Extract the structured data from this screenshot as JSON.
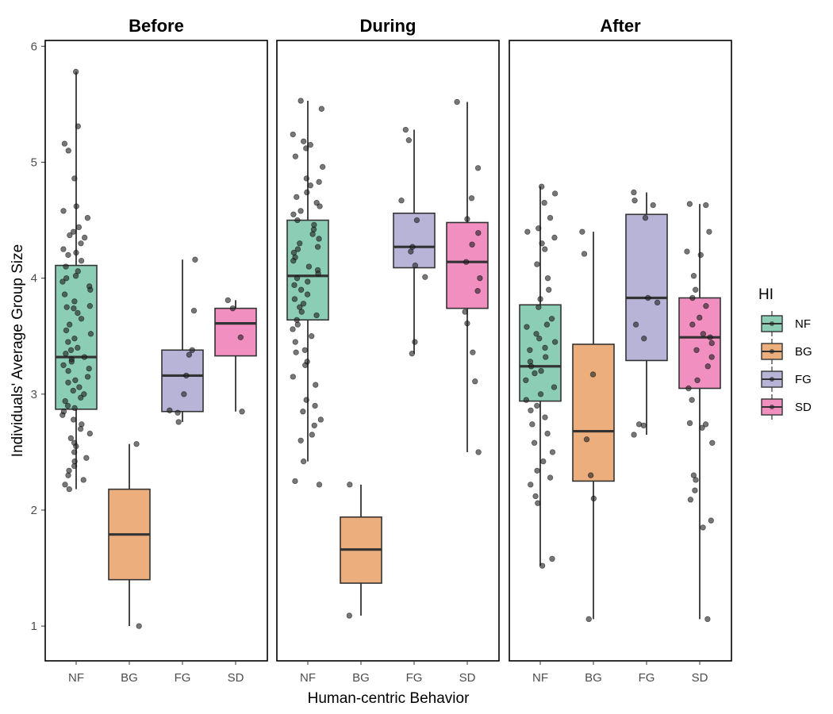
{
  "chart_data": {
    "type": "box",
    "xlabel": "Human-centric Behavior",
    "ylabel": "Individuals' Average Group Size",
    "ylim": [
      0.7,
      6.05
    ],
    "yticks": [
      1,
      2,
      3,
      4,
      5,
      6
    ],
    "categories": [
      "NF",
      "BG",
      "FG",
      "SD"
    ],
    "colors": {
      "NF": "#8ccdb6",
      "BG": "#ebae7c",
      "FG": "#b8b4d7",
      "SD": "#f08fc0"
    },
    "legend": {
      "title": "HI",
      "position": "right",
      "entries": [
        "NF",
        "BG",
        "FG",
        "SD"
      ]
    },
    "panels": [
      {
        "title": "Before",
        "boxes": [
          {
            "category": "NF",
            "min": 2.18,
            "q1": 2.87,
            "median": 3.32,
            "q3": 4.11,
            "max": 5.78,
            "points": [
              5.78,
              5.31,
              5.16,
              5.1,
              4.86,
              4.62,
              4.58,
              4.52,
              4.44,
              4.4,
              4.37,
              4.35,
              4.3,
              4.25,
              4.22,
              4.2,
              4.15,
              4.1,
              4.06,
              4.02,
              4.0,
              3.97,
              3.93,
              3.9,
              3.86,
              3.8,
              3.76,
              3.75,
              3.74,
              3.7,
              3.65,
              3.6,
              3.55,
              3.52,
              3.48,
              3.45,
              3.4,
              3.38,
              3.35,
              3.32,
              3.3,
              3.28,
              3.25,
              3.22,
              3.2,
              3.15,
              3.12,
              3.1,
              3.06,
              3.03,
              3.0,
              2.97,
              2.94,
              2.9,
              2.88,
              2.85,
              2.82,
              2.78,
              2.74,
              2.7,
              2.66,
              2.62,
              2.58,
              2.55,
              2.5,
              2.45,
              2.42,
              2.38,
              2.34,
              2.3,
              2.26,
              2.22,
              2.18
            ]
          },
          {
            "category": "BG",
            "min": 1.0,
            "q1": 1.4,
            "median": 1.79,
            "q3": 2.18,
            "max": 2.57,
            "points": [
              2.57,
              1.0
            ]
          },
          {
            "category": "FG",
            "min": 2.76,
            "q1": 2.85,
            "median": 3.16,
            "q3": 3.38,
            "max": 4.16,
            "points": [
              4.16,
              3.72,
              3.38,
              3.34,
              3.16,
              3.0,
              2.86,
              2.84,
              2.76
            ]
          },
          {
            "category": "SD",
            "min": 2.85,
            "q1": 3.33,
            "median": 3.61,
            "q3": 3.74,
            "max": 3.81,
            "points": [
              3.81,
              3.74,
              3.49,
              2.85
            ]
          }
        ]
      },
      {
        "title": "During",
        "boxes": [
          {
            "category": "NF",
            "min": 2.42,
            "q1": 3.64,
            "median": 4.02,
            "q3": 4.5,
            "max": 5.53,
            "points": [
              5.53,
              5.46,
              5.24,
              5.18,
              5.15,
              5.12,
              5.05,
              4.96,
              4.86,
              4.83,
              4.8,
              4.74,
              4.7,
              4.65,
              4.62,
              4.58,
              4.55,
              4.5,
              4.46,
              4.42,
              4.38,
              4.34,
              4.3,
              4.27,
              4.25,
              4.22,
              4.18,
              4.15,
              4.1,
              4.07,
              4.04,
              4.0,
              3.97,
              3.94,
              3.9,
              3.86,
              3.82,
              3.78,
              3.75,
              3.71,
              3.68,
              3.64,
              3.6,
              3.56,
              3.5,
              3.45,
              3.38,
              3.36,
              3.28,
              3.25,
              3.15,
              3.08,
              2.95,
              2.9,
              2.85,
              2.78,
              2.73,
              2.65,
              2.6,
              2.42,
              2.25,
              2.22
            ]
          },
          {
            "category": "BG",
            "min": 1.09,
            "q1": 1.37,
            "median": 1.66,
            "q3": 1.94,
            "max": 2.22,
            "points": [
              2.22,
              1.09
            ]
          },
          {
            "category": "FG",
            "min": 3.35,
            "q1": 4.09,
            "median": 4.27,
            "q3": 4.56,
            "max": 5.28,
            "points": [
              5.28,
              5.19,
              4.67,
              4.5,
              4.27,
              4.23,
              4.11,
              4.01,
              3.45,
              3.35
            ]
          },
          {
            "category": "SD",
            "min": 2.5,
            "q1": 3.74,
            "median": 4.14,
            "q3": 4.48,
            "max": 5.52,
            "points": [
              5.52,
              4.95,
              4.69,
              4.51,
              4.39,
              4.29,
              4.14,
              4.0,
              3.89,
              3.71,
              3.61,
              3.36,
              3.11,
              2.5
            ]
          }
        ]
      },
      {
        "title": "After",
        "boxes": [
          {
            "category": "NF",
            "min": 1.52,
            "q1": 2.94,
            "median": 3.24,
            "q3": 3.77,
            "max": 4.79,
            "points": [
              4.79,
              4.73,
              4.65,
              4.52,
              4.43,
              4.4,
              4.35,
              4.3,
              4.25,
              4.12,
              4.0,
              3.9,
              3.82,
              3.75,
              3.65,
              3.6,
              3.58,
              3.52,
              3.48,
              3.45,
              3.4,
              3.38,
              3.32,
              3.28,
              3.24,
              3.2,
              3.18,
              3.12,
              3.06,
              3.0,
              2.95,
              2.9,
              2.86,
              2.8,
              2.74,
              2.66,
              2.58,
              2.5,
              2.42,
              2.34,
              2.28,
              2.22,
              2.12,
              2.06,
              1.58,
              1.52
            ]
          },
          {
            "category": "BG",
            "min": 1.06,
            "q1": 2.25,
            "median": 2.68,
            "q3": 3.43,
            "max": 4.4,
            "points": [
              4.4,
              4.21,
              3.17,
              2.61,
              2.3,
              2.1,
              1.06
            ]
          },
          {
            "category": "FG",
            "min": 2.65,
            "q1": 3.29,
            "median": 3.83,
            "q3": 4.55,
            "max": 4.74,
            "points": [
              4.74,
              4.67,
              4.63,
              4.52,
              3.83,
              3.79,
              3.6,
              3.48,
              2.74,
              2.73,
              2.65
            ]
          },
          {
            "category": "SD",
            "min": 1.06,
            "q1": 3.05,
            "median": 3.49,
            "q3": 3.83,
            "max": 4.64,
            "points": [
              4.64,
              4.63,
              4.4,
              4.23,
              4.2,
              4.02,
              3.9,
              3.83,
              3.76,
              3.66,
              3.6,
              3.52,
              3.49,
              3.44,
              3.38,
              3.32,
              3.24,
              3.12,
              3.05,
              2.95,
              2.75,
              2.74,
              2.71,
              2.58,
              2.3,
              2.26,
              2.17,
              2.09,
              1.91,
              1.85,
              1.06
            ]
          }
        ]
      }
    ]
  }
}
